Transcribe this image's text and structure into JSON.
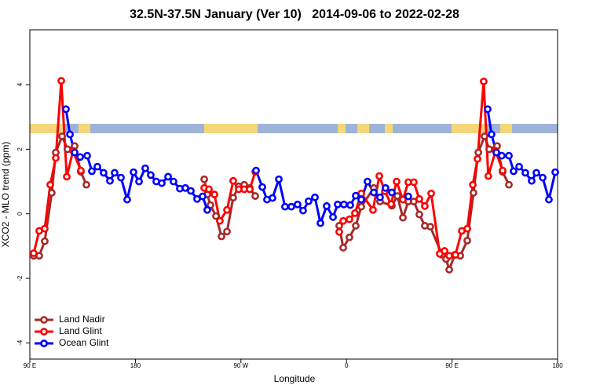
{
  "chart_data": {
    "type": "line",
    "title": "32.5N-37.5N January (Ver 10)   2014-09-06 to 2022-02-28",
    "xlabel": "Longitude",
    "ylabel": "XCO2 - MLO trend (ppm)",
    "xlim": [
      90,
      540
    ],
    "ylim": [
      -4.5,
      5.7
    ],
    "xticks": [
      {
        "value": 90,
        "label": "90 E"
      },
      180,
      {
        "value": 270,
        "label": "90 W"
      },
      {
        "value": 360,
        "label": "0"
      },
      {
        "value": 450,
        "label": "90 E"
      },
      {
        "value": 540,
        "label": "180"
      }
    ],
    "yticks": [
      -4,
      -2,
      0,
      2,
      4
    ],
    "legend": "bottomleft",
    "series": [
      {
        "name": "Land Nadir",
        "color": "#a52a2a",
        "x": [
          93.3,
          98.0,
          102.7,
          108.7,
          112.1,
          117.5,
          122.1,
          128.2,
          133.5,
          138.2,
          null,
          238.7,
          241.3,
          244.0,
          248.7,
          253.4,
          258.1,
          263.4,
          268.1,
          272.8,
          277.5,
          282.2,
          null,
          353.8,
          357.2,
          362.5,
          367.9,
          372.6,
          383.3,
          388.6,
          398.7,
          403.4,
          408.1,
          412.7,
          417.4,
          422.1,
          426.8,
          431.5,
          441.5,
          444.9,
          447.6,
          452.3,
          457.0,
          463.0,
          468.3,
          472.4,
          477.7,
          481.7,
          488.4,
          493.1,
          498.5
        ],
        "values": [
          -1.3,
          -1.3,
          -0.85,
          0.65,
          1.9,
          2.4,
          2.0,
          2.1,
          1.3,
          0.9,
          null,
          1.07,
          0.6,
          0.27,
          -0.07,
          -0.7,
          -0.55,
          0.5,
          0.85,
          0.9,
          0.8,
          0.55,
          null,
          -0.37,
          -1.05,
          -0.73,
          -0.37,
          0.22,
          0.8,
          0.38,
          0.25,
          0.55,
          -0.12,
          0.38,
          0.38,
          -0.02,
          -0.37,
          -0.4,
          -1.27,
          -1.4,
          -1.73,
          -1.27,
          -1.3,
          -0.83,
          0.65,
          1.9,
          2.4,
          2.0,
          2.1,
          1.3,
          0.9
        ]
      },
      {
        "name": "Land Glint",
        "color": "#ff0000",
        "x": [
          93.3,
          98.0,
          102.7,
          107.4,
          112.1,
          116.8,
          121.5,
          126.8,
          133.5,
          null,
          238.7,
          242.7,
          247.4,
          252.0,
          258.1,
          263.4,
          268.1,
          272.8,
          277.5,
          282.2,
          null,
          353.8,
          357.2,
          362.5,
          367.2,
          372.6,
          382.6,
          388.0,
          392.7,
          398.0,
          402.7,
          408.1,
          412.7,
          417.4,
          422.1,
          426.8,
          432.2,
          439.5,
          443.6,
          447.6,
          452.9,
          458.3,
          463.0,
          467.7,
          471.7,
          477.0,
          480.9,
          487.1,
          493.1
        ],
        "values": [
          -1.22,
          -0.53,
          -0.46,
          0.9,
          1.73,
          4.12,
          1.15,
          1.95,
          1.34,
          null,
          0.8,
          0.76,
          0.6,
          -0.22,
          0.12,
          1.02,
          0.76,
          0.76,
          0.76,
          1.3,
          null,
          -0.56,
          -0.22,
          -0.17,
          0.02,
          0.63,
          0.12,
          1.17,
          0.7,
          0.3,
          1.0,
          0.44,
          0.98,
          0.98,
          0.46,
          0.24,
          0.63,
          -1.24,
          -1.15,
          -1.3,
          -1.27,
          -0.53,
          -0.46,
          0.9,
          1.7,
          4.1,
          1.17,
          1.95,
          1.34
        ]
      },
      {
        "name": "Ocean Glint",
        "color": "#0000ff",
        "x": [
          120.8,
          124.2,
          128.2,
          132.9,
          138.9,
          142.9,
          147.6,
          152.9,
          158.3,
          162.3,
          167.7,
          173.0,
          178.4,
          183.1,
          188.4,
          193.1,
          197.8,
          202.5,
          207.9,
          212.5,
          217.9,
          222.6,
          227.3,
          232.6,
          237.3,
          241.3,
          null,
          282.9,
          288.2,
          292.2,
          296.9,
          302.3,
          307.6,
          313.0,
          318.3,
          323.0,
          327.7,
          333.1,
          337.8,
          343.1,
          348.5,
          352.5,
          357.8,
          363.2,
          367.9,
          372.6,
          377.9,
          383.3,
          388.6,
          393.3,
          398.7,
          null,
          412.7,
          null,
          480.4,
          483.7,
          487.8,
          492.4,
          498.5,
          502.5,
          507.2,
          512.5,
          517.9,
          521.9,
          527.3,
          532.6,
          538.0
        ],
        "values": [
          3.24,
          2.46,
          1.9,
          1.76,
          1.8,
          1.32,
          1.46,
          1.27,
          1.02,
          1.27,
          1.12,
          0.44,
          1.29,
          1.0,
          1.41,
          1.2,
          1.0,
          0.95,
          1.15,
          1.0,
          0.78,
          0.8,
          0.71,
          0.46,
          0.54,
          0.12,
          null,
          1.34,
          0.83,
          0.44,
          0.49,
          1.07,
          0.22,
          0.22,
          0.29,
          0.1,
          0.39,
          0.51,
          -0.29,
          0.24,
          -0.1,
          0.29,
          0.29,
          0.27,
          0.56,
          0.44,
          1.0,
          0.66,
          0.51,
          0.8,
          0.66,
          null,
          0.54,
          null,
          3.24,
          2.46,
          1.9,
          1.8,
          1.8,
          1.32,
          1.46,
          1.27,
          1.02,
          1.27,
          1.12,
          0.44,
          1.29
        ]
      }
    ]
  }
}
